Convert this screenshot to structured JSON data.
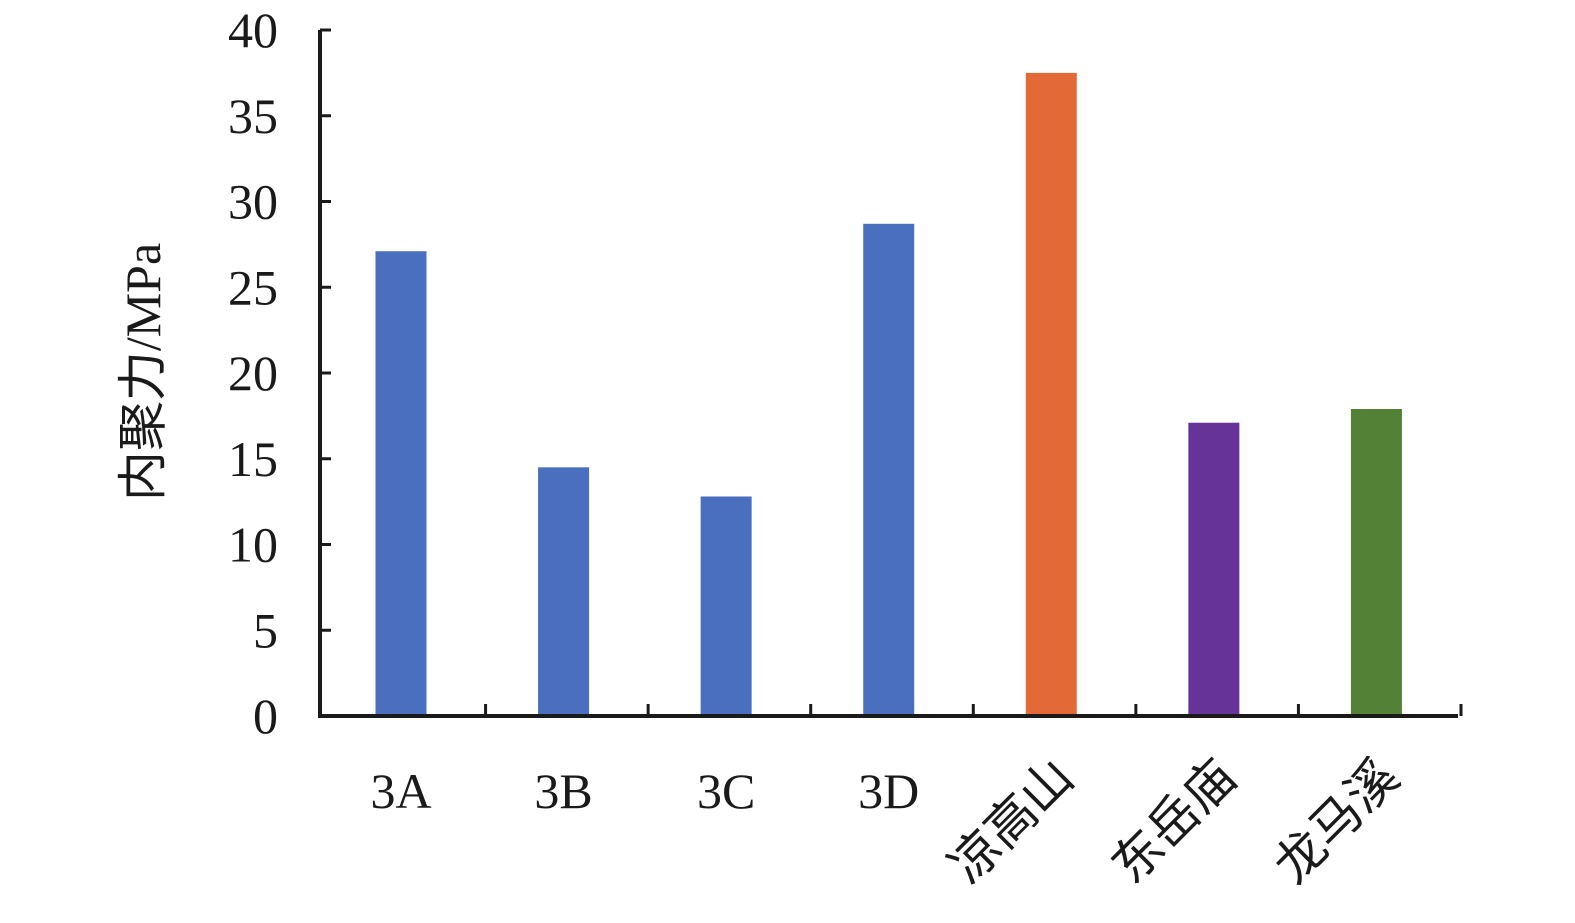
{
  "chart_data": {
    "type": "bar",
    "title": "",
    "xlabel": "",
    "ylabel": "内聚力/MPa",
    "ylim": [
      0,
      40
    ],
    "yticks": [
      0,
      5,
      10,
      15,
      20,
      25,
      30,
      35,
      40
    ],
    "categories": [
      "3A",
      "3B",
      "3C",
      "3D",
      "凉高山",
      "东岳庙",
      "龙马溪"
    ],
    "values": [
      27.1,
      14.5,
      12.8,
      28.7,
      37.5,
      17.1,
      17.9
    ],
    "colors": [
      "#4a6fbf",
      "#4a6fbf",
      "#4a6fbf",
      "#4a6fbf",
      "#e36a36",
      "#663399",
      "#538135"
    ],
    "rotated_labels": [
      false,
      false,
      false,
      false,
      true,
      true,
      true
    ],
    "grid": false,
    "legend": "none"
  }
}
